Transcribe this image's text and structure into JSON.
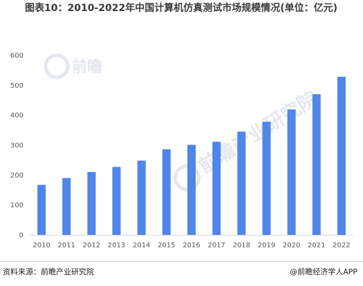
{
  "title": "图表10：2010-2022年中国计算机仿真测试市场规模情况(单位：亿元)",
  "chart_data": {
    "type": "bar",
    "categories": [
      "2010",
      "2011",
      "2012",
      "2013",
      "2014",
      "2015",
      "2016",
      "2017",
      "2018",
      "2019",
      "2020",
      "2021",
      "2022"
    ],
    "series": [
      {
        "values": [
          167,
          190,
          210,
          227,
          248,
          286,
          301,
          311,
          345,
          378,
          419,
          470,
          528
        ]
      }
    ],
    "ylim": [
      0,
      600
    ],
    "yticks": [
      0,
      100,
      200,
      300,
      400,
      500,
      600
    ],
    "grid": false,
    "bar_color": "#4f86e8"
  },
  "footer": {
    "source": "资料来源：前瞻产业研究院",
    "brand": "@前瞻经济学人APP"
  },
  "watermark": {
    "logo_text": "前瞻",
    "org_text": "前瞻产业研究院"
  }
}
